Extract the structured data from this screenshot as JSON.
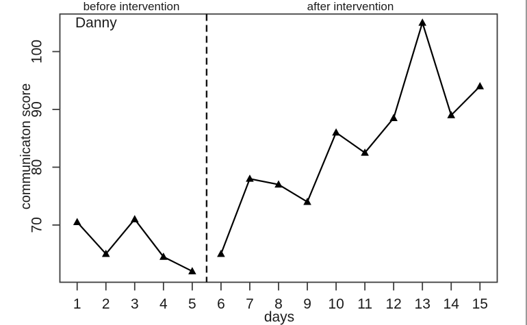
{
  "chart_data": {
    "type": "line",
    "participant": "Danny",
    "xlabel": "days",
    "ylabel": "communicaton score",
    "x": [
      1,
      2,
      3,
      4,
      5,
      6,
      7,
      8,
      9,
      10,
      11,
      12,
      13,
      14,
      15
    ],
    "series": [
      {
        "name": "communication score",
        "values": [
          70.5,
          65,
          71,
          64.5,
          62,
          65,
          78,
          77,
          74,
          86,
          82.5,
          88.5,
          105,
          89,
          94
        ]
      }
    ],
    "phases": [
      {
        "label": "before intervention",
        "days": [
          1,
          5
        ]
      },
      {
        "label": "after intervention",
        "days": [
          6,
          15
        ]
      }
    ],
    "phase_split_x": 5.5,
    "x_ticks": [
      1,
      2,
      3,
      4,
      5,
      6,
      7,
      8,
      9,
      10,
      11,
      12,
      13,
      14,
      15
    ],
    "y_ticks": [
      70,
      80,
      90,
      100
    ],
    "xlim": [
      0.4,
      15.6
    ],
    "ylim": [
      60.1,
      106.5
    ],
    "marker": "filled-triangle",
    "line_color": "#000000",
    "axis_color": "#3d3d3d",
    "text_color": "#1a1a1a",
    "background": "#ffffff",
    "grid": false,
    "legend": "none"
  }
}
